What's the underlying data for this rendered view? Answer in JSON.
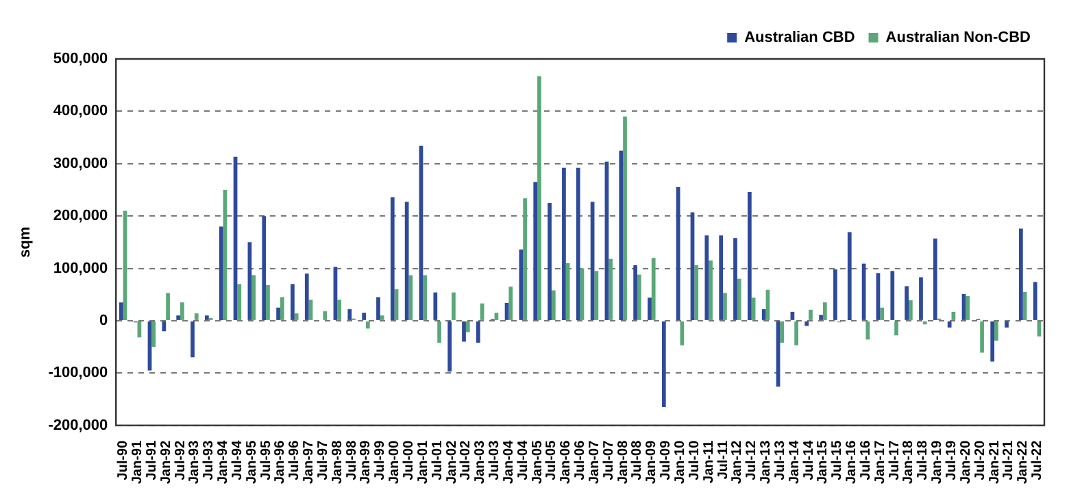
{
  "chart_data": {
    "type": "bar",
    "ylabel": "sqm",
    "categories": [
      "Jul-90",
      "Jan-91",
      "Jul-91",
      "Jan-92",
      "Jul-92",
      "Jan-93",
      "Jul-93",
      "Jan-94",
      "Jul-94",
      "Jan-95",
      "Jul-95",
      "Jan-96",
      "Jul-96",
      "Jan-97",
      "Jul-97",
      "Jan-98",
      "Jul-98",
      "Jan-99",
      "Jul-99",
      "Jan-00",
      "Jul-00",
      "Jan-01",
      "Jul-01",
      "Jan-02",
      "Jul-02",
      "Jan-03",
      "Jul-03",
      "Jan-04",
      "Jul-04",
      "Jan-05",
      "Jul-05",
      "Jan-06",
      "Jul-06",
      "Jan-07",
      "Jul-07",
      "Jan-08",
      "Jul-08",
      "Jan-09",
      "Jul-09",
      "Jan-10",
      "Jul-10",
      "Jan-11",
      "Jul-11",
      "Jan-12",
      "Jul-12",
      "Jan-13",
      "Jul-13",
      "Jan-14",
      "Jul-14",
      "Jan-15",
      "Jul-15",
      "Jan-16",
      "Jul-16",
      "Jan-17",
      "Jul-17",
      "Jan-18",
      "Jul-18",
      "Jan-19",
      "Jul-19",
      "Jan-20",
      "Jul-20",
      "Jan-21",
      "Jul-21",
      "Jan-22",
      "Jul-22"
    ],
    "series": [
      {
        "name": "Australian CBD",
        "color": "#2e4a9a",
        "values": [
          35000,
          -3000,
          -95000,
          -20000,
          10000,
          -70000,
          10000,
          180000,
          313000,
          150000,
          200000,
          25000,
          70000,
          90000,
          null,
          103000,
          22000,
          15000,
          45000,
          236000,
          227000,
          334000,
          54000,
          -97000,
          -40000,
          -42000,
          3000,
          34000,
          136000,
          265000,
          225000,
          292000,
          292000,
          227000,
          304000,
          325000,
          106000,
          44000,
          -165000,
          255000,
          207000,
          163000,
          163000,
          158000,
          246000,
          22000,
          -126000,
          17000,
          -10000,
          11000,
          98000,
          169000,
          109000,
          91000,
          95000,
          66000,
          83000,
          157000,
          -13000,
          51000,
          3000,
          -78000,
          -13000,
          176000,
          74000
        ]
      },
      {
        "name": "Australian Non-CBD",
        "color": "#5aa878",
        "values": [
          210000,
          -32000,
          -50000,
          53000,
          35000,
          14000,
          5000,
          250000,
          70000,
          87000,
          68000,
          45000,
          14000,
          40000,
          18000,
          40000,
          4000,
          -15000,
          10000,
          60000,
          87000,
          87000,
          -42000,
          54000,
          -22000,
          33000,
          15000,
          65000,
          234000,
          467000,
          58000,
          110000,
          100000,
          95000,
          118000,
          390000,
          88000,
          120000,
          null,
          -47000,
          106000,
          115000,
          53000,
          80000,
          44000,
          59000,
          -42000,
          -47000,
          21000,
          35000,
          -3000,
          0,
          -36000,
          25000,
          -28000,
          39000,
          -7000,
          4000,
          17000,
          47000,
          -61000,
          -38000,
          null,
          55000,
          -30000
        ]
      }
    ],
    "ylim": [
      -200000,
      500000
    ],
    "yticks": [
      {
        "value": -200000,
        "label": "-200,000"
      },
      {
        "value": -100000,
        "label": "-100,000"
      },
      0,
      {
        "value": 100000,
        "label": "100,000"
      },
      {
        "value": 200000,
        "label": "200,000"
      },
      {
        "value": 300000,
        "label": "300,000"
      },
      {
        "value": 400000,
        "label": "400,000"
      },
      {
        "value": 500000,
        "label": "500,000"
      }
    ],
    "grid": "y",
    "legend": "top right"
  }
}
